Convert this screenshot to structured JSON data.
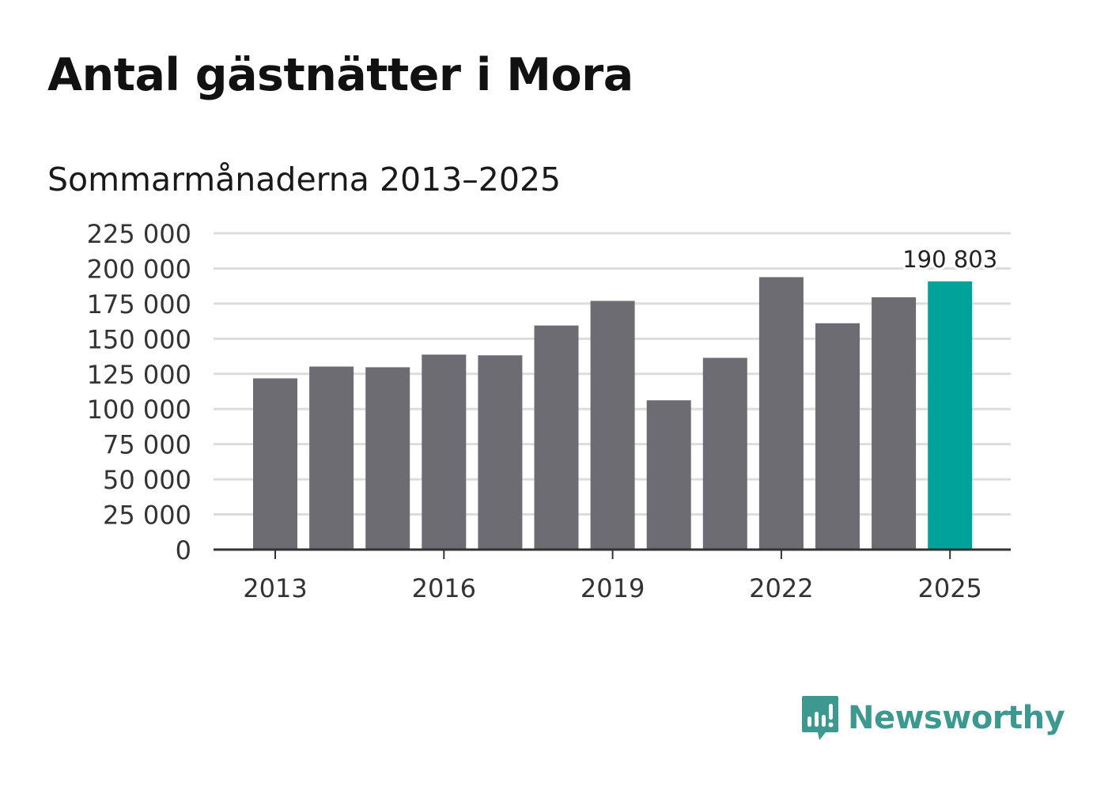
{
  "title": "Antal gästnätter i Mora",
  "subtitle": "Sommarmånaderna 2013–2025",
  "brand": {
    "name": "Newsworthy",
    "color": "#3d9990",
    "icon": "bar-chart-speech-bubble-icon"
  },
  "colors": {
    "bar": "#6d6c72",
    "highlight": "#00a29a",
    "grid": "#dddddd",
    "axis": "#333333"
  },
  "chart_data": {
    "type": "bar",
    "categories": [
      "2013",
      "2014",
      "2015",
      "2016",
      "2017",
      "2018",
      "2019",
      "2020",
      "2021",
      "2022",
      "2023",
      "2024",
      "2025"
    ],
    "values": [
      121800,
      130200,
      129700,
      138700,
      138200,
      159400,
      176900,
      106200,
      136400,
      193800,
      161000,
      179500,
      190803
    ],
    "highlight_category": "2025",
    "data_labels": [
      {
        "category": "2025",
        "text": "190 803"
      }
    ],
    "x_tick_labels": [
      "2013",
      "2016",
      "2019",
      "2022",
      "2025"
    ],
    "y_ticks": [
      0,
      25000,
      50000,
      75000,
      100000,
      125000,
      150000,
      175000,
      200000,
      225000
    ],
    "y_tick_labels": [
      "0",
      "25 000",
      "50 000",
      "75 000",
      "100 000",
      "125 000",
      "150 000",
      "175 000",
      "200 000",
      "225 000"
    ],
    "ylim": [
      0,
      225000
    ],
    "grid": true,
    "title": "Antal gästnätter i Mora",
    "subtitle": "Sommarmånaderna 2013–2025",
    "xlabel": "",
    "ylabel": ""
  }
}
